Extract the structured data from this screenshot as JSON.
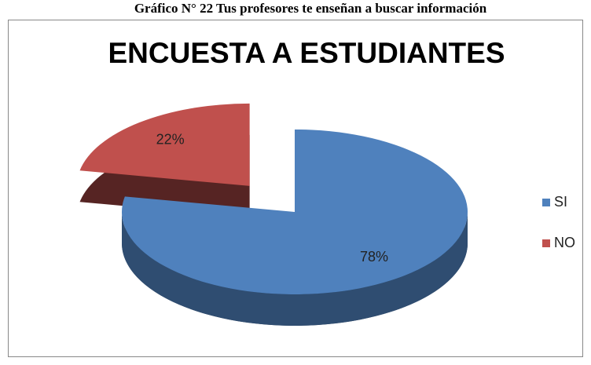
{
  "caption": "Gráfico N° 22 Tus profesores te enseñan a buscar información",
  "chart_data": {
    "type": "pie",
    "title": "ENCUESTA A ESTUDIANTES",
    "categories": [
      "SI",
      "NO"
    ],
    "values": [
      78,
      22
    ],
    "value_labels": [
      "78%",
      "22%"
    ],
    "colors": [
      "#4f81bd",
      "#c0504d"
    ],
    "legend": "right"
  }
}
